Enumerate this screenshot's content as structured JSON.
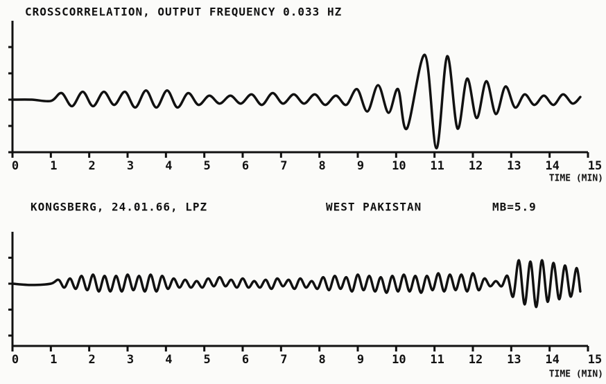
{
  "chart_data": [
    {
      "type": "line",
      "title": "CROSSCORRELATION, OUTPUT FREQUENCY 0.033 HZ",
      "x_label": "TIME (MIN)",
      "xlim": [
        0,
        15
      ],
      "xticks": [
        0,
        1,
        2,
        3,
        4,
        5,
        6,
        7,
        8,
        9,
        10,
        11,
        12,
        13,
        14,
        15
      ],
      "ylim": [
        -2,
        3
      ],
      "yticks": [
        -2,
        -1,
        0,
        1,
        2
      ],
      "series": [
        {
          "color": "#111111",
          "x": [
            0,
            0.5,
            1.0,
            1.28,
            1.55,
            1.83,
            2.1,
            2.38,
            2.65,
            2.93,
            3.2,
            3.48,
            3.75,
            4.03,
            4.3,
            4.58,
            4.85,
            5.13,
            5.4,
            5.68,
            5.95,
            6.23,
            6.5,
            6.78,
            7.05,
            7.33,
            7.6,
            7.88,
            8.15,
            8.43,
            8.7,
            8.98,
            9.25,
            9.53,
            9.8,
            10.05,
            10.28,
            10.75,
            11.05,
            11.33,
            11.6,
            11.85,
            12.1,
            12.35,
            12.6,
            12.85,
            13.1,
            13.35,
            13.6,
            13.85,
            14.1,
            14.35,
            14.6,
            14.8
          ],
          "values": [
            0,
            0,
            -0.05,
            0.25,
            -0.25,
            0.3,
            -0.25,
            0.3,
            -0.2,
            0.3,
            -0.3,
            0.35,
            -0.3,
            0.35,
            -0.3,
            0.25,
            -0.2,
            0.15,
            -0.15,
            0.15,
            -0.15,
            0.2,
            -0.2,
            0.25,
            -0.15,
            0.2,
            -0.15,
            0.2,
            -0.2,
            0.15,
            -0.2,
            0.4,
            -0.45,
            0.55,
            -0.5,
            0.4,
            -1.1,
            1.7,
            -1.85,
            1.65,
            -1.1,
            0.8,
            -0.7,
            0.7,
            -0.55,
            0.5,
            -0.3,
            0.2,
            -0.2,
            0.15,
            -0.2,
            0.2,
            -0.15,
            0.1
          ]
        }
      ]
    },
    {
      "type": "line",
      "title": "KONGSBERG, 24.01.66, LPZ",
      "annotations": [
        "WEST PAKISTAN",
        "MB=5.9"
      ],
      "x_label": "TIME (MIN)",
      "xlim": [
        0,
        15
      ],
      "xticks": [
        0,
        1,
        2,
        3,
        4,
        5,
        6,
        7,
        8,
        9,
        10,
        11,
        12,
        13,
        14,
        15
      ],
      "ylim": [
        -2.4,
        2
      ],
      "yticks": [
        -2,
        -1,
        0,
        1
      ],
      "series": [
        {
          "color": "#111111",
          "x": [
            0,
            0.5,
            1.0,
            1.2,
            1.35,
            1.5,
            1.65,
            1.8,
            1.95,
            2.1,
            2.25,
            2.4,
            2.55,
            2.7,
            2.85,
            3.0,
            3.15,
            3.3,
            3.45,
            3.6,
            3.75,
            3.9,
            4.05,
            4.2,
            4.35,
            4.5,
            4.65,
            4.8,
            4.95,
            5.1,
            5.25,
            5.4,
            5.55,
            5.7,
            5.85,
            6.0,
            6.15,
            6.3,
            6.45,
            6.6,
            6.75,
            6.9,
            7.05,
            7.2,
            7.35,
            7.5,
            7.65,
            7.8,
            7.95,
            8.1,
            8.25,
            8.4,
            8.55,
            8.7,
            8.85,
            9.0,
            9.15,
            9.3,
            9.45,
            9.6,
            9.75,
            9.9,
            10.05,
            10.2,
            10.35,
            10.5,
            10.65,
            10.8,
            10.95,
            11.1,
            11.25,
            11.4,
            11.55,
            11.7,
            11.85,
            12.0,
            12.15,
            12.3,
            12.45,
            12.6,
            12.75,
            12.9,
            13.05,
            13.2,
            13.35,
            13.5,
            13.65,
            13.8,
            13.95,
            14.1,
            14.25,
            14.4,
            14.55,
            14.7,
            14.8
          ],
          "values": [
            0,
            -0.05,
            0,
            0.15,
            -0.15,
            0.2,
            -0.2,
            0.3,
            -0.25,
            0.35,
            -0.3,
            0.3,
            -0.3,
            0.3,
            -0.3,
            0.35,
            -0.25,
            0.3,
            -0.3,
            0.35,
            -0.3,
            0.3,
            -0.2,
            0.2,
            -0.15,
            0.15,
            -0.15,
            0.1,
            -0.15,
            0.2,
            -0.1,
            0.25,
            -0.1,
            0.15,
            -0.15,
            0.2,
            -0.15,
            0.1,
            -0.15,
            0.15,
            -0.2,
            0.2,
            -0.1,
            0.15,
            -0.2,
            0.2,
            -0.15,
            0.1,
            -0.2,
            0.25,
            -0.25,
            0.3,
            -0.2,
            0.25,
            -0.3,
            0.35,
            -0.25,
            0.3,
            -0.3,
            0.25,
            -0.35,
            0.3,
            -0.3,
            0.35,
            -0.3,
            0.3,
            -0.35,
            0.3,
            -0.25,
            0.4,
            -0.3,
            0.35,
            -0.25,
            0.35,
            -0.3,
            0.4,
            -0.25,
            0.2,
            -0.1,
            0.1,
            -0.1,
            0.3,
            -0.5,
            0.9,
            -0.8,
            0.85,
            -0.9,
            0.9,
            -0.7,
            0.8,
            -0.6,
            0.7,
            -0.5,
            0.6,
            -0.3
          ]
        }
      ]
    }
  ]
}
